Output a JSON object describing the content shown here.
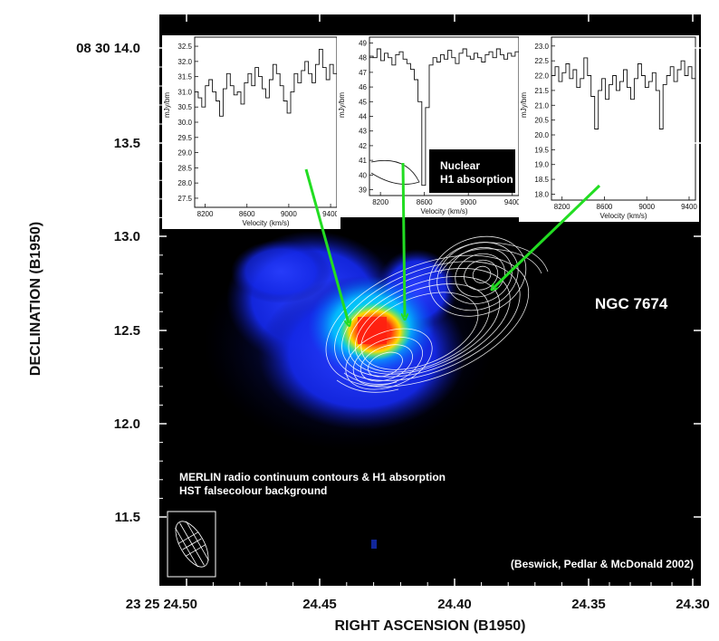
{
  "chart_data": {
    "type": "heatmap",
    "title": "NGC 7674",
    "xlabel": "RIGHT ASCENSION (B1950)",
    "ylabel": "DECLINATION (B1950)",
    "x_ticks": [
      "23 25 24.50",
      "24.45",
      "24.40",
      "24.35",
      "24.30"
    ],
    "y_ticks": [
      "08 30 14.0",
      "13.5",
      "13.0",
      "12.5",
      "12.0",
      "11.5"
    ],
    "xlim": [
      24.5,
      24.3
    ],
    "ylim": [
      11.3,
      14.2
    ],
    "caption_lines": [
      "MERLIN radio continuum contours & H1 absorption",
      "HST falsecolour background"
    ],
    "credit": "(Beswick, Pedlar & McDonald 2002)",
    "colors": {
      "frame": "#000000",
      "contour": "#ffffff",
      "arrow": "#22dd22",
      "low": "#1030ff",
      "mid": "#00e8ff",
      "hot": "#ff2010",
      "warm": "#ffe400"
    },
    "insets": [
      {
        "ylabel": "mJy/bm",
        "xlabel": "Velocity (km/s)",
        "x_ticks": [
          "8200",
          "8600",
          "9000",
          "9400"
        ],
        "y_ticks": [
          "32.5",
          "32.0",
          "31.5",
          "31.0",
          "30.5",
          "30.0",
          "29.5",
          "29.0",
          "28.5",
          "28.0",
          "27.5"
        ],
        "ylim": [
          27.2,
          32.8
        ],
        "xlim": [
          8100,
          9460
        ],
        "annotation": "",
        "spectrum": [
          31.0,
          30.8,
          30.5,
          31.2,
          31.4,
          31.0,
          30.7,
          30.2,
          31.1,
          31.6,
          31.2,
          30.9,
          31.0,
          30.6,
          31.3,
          31.6,
          31.2,
          31.8,
          31.5,
          31.1,
          30.8,
          31.4,
          31.9,
          31.6,
          31.2,
          30.7,
          30.3,
          31.0,
          31.6,
          31.3,
          31.7,
          32.0,
          31.6,
          31.3,
          31.9,
          32.4,
          31.8,
          31.4,
          31.9,
          31.6
        ]
      },
      {
        "ylabel": "mJy/bm",
        "xlabel": "Velocity (km/s)",
        "x_ticks": [
          "8200",
          "8600",
          "9000",
          "9400"
        ],
        "y_ticks": [
          "49",
          "48",
          "47",
          "46",
          "45",
          "44",
          "43",
          "42",
          "41",
          "40",
          "39"
        ],
        "ylim": [
          38.6,
          49.4
        ],
        "xlim": [
          8100,
          9460
        ],
        "annotation": "Nuclear H1 absorption",
        "spectrum": [
          48.1,
          48.0,
          48.6,
          47.8,
          48.3,
          48.0,
          47.5,
          48.2,
          48.4,
          47.9,
          47.6,
          47.2,
          46.5,
          45.0,
          39.3,
          44.6,
          47.5,
          48.0,
          47.7,
          48.2,
          47.9,
          48.5,
          48.0,
          47.6,
          48.3,
          48.6,
          48.1,
          47.9,
          48.3,
          48.0,
          47.7,
          48.2,
          48.4,
          48.0,
          48.6,
          48.2,
          47.9,
          48.3,
          48.1,
          48.4
        ]
      },
      {
        "ylabel": "mJy/bm",
        "xlabel": "Velocity (km/s)",
        "x_ticks": [
          "8200",
          "8600",
          "9000",
          "9400"
        ],
        "y_ticks": [
          "23.0",
          "22.5",
          "22.0",
          "21.5",
          "21.0",
          "20.5",
          "20.0",
          "19.5",
          "19.0",
          "18.5",
          "18.0"
        ],
        "ylim": [
          17.8,
          23.3
        ],
        "xlim": [
          8100,
          9460
        ],
        "annotation": "",
        "spectrum": [
          22.0,
          22.3,
          21.8,
          22.1,
          22.4,
          21.9,
          22.2,
          21.6,
          21.9,
          22.6,
          22.0,
          21.3,
          20.2,
          21.5,
          21.9,
          21.2,
          21.7,
          22.0,
          21.5,
          21.8,
          22.2,
          21.6,
          21.2,
          21.9,
          22.4,
          22.0,
          21.6,
          21.8,
          22.1,
          21.5,
          20.2,
          21.7,
          22.0,
          22.3,
          21.8,
          22.2,
          22.5,
          22.0,
          22.3,
          21.9
        ]
      }
    ]
  }
}
